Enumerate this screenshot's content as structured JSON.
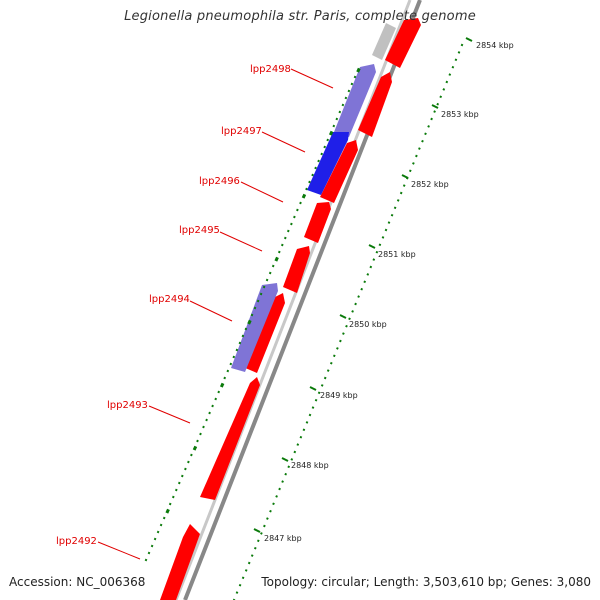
{
  "title": "Legionella pneumophila str. Paris, complete genome",
  "footer": {
    "accession": "Accession: NC_006368",
    "stats": "Topology: circular; Length: 3,503,610 bp; Genes: 3,080"
  },
  "ticks": [
    {
      "label": "2854 kbp"
    },
    {
      "label": "2853 kbp"
    },
    {
      "label": "2852 kbp"
    },
    {
      "label": "2851 kbp"
    },
    {
      "label": "2850 kbp"
    },
    {
      "label": "2849 kbp"
    },
    {
      "label": "2848 kbp"
    },
    {
      "label": "2847 kbp"
    }
  ],
  "genes": [
    {
      "name": "lpp2498"
    },
    {
      "name": "lpp2497"
    },
    {
      "name": "lpp2496"
    },
    {
      "name": "lpp2495"
    },
    {
      "name": "lpp2494"
    },
    {
      "name": "lpp2493"
    },
    {
      "name": "lpp2492"
    }
  ],
  "colors": {
    "cds": "#ff0000",
    "feature_blue": "#1f1fe8",
    "feature_lavender": "#7f74d6",
    "gray_track": "#9a9a9a",
    "tick_green": "#0a7a0a",
    "label_red": "#e00000"
  }
}
